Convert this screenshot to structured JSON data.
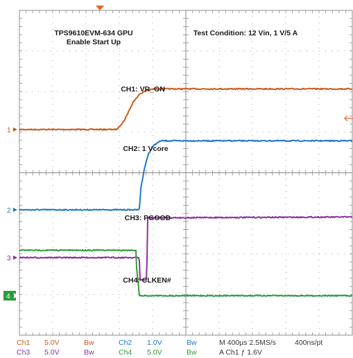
{
  "chart_data": {
    "type": "line",
    "x_unit": "µs",
    "x_range": [
      0,
      4000
    ],
    "y_unit": "div",
    "y_range": [
      -4,
      4
    ],
    "grid": true,
    "annotations": {
      "title_line1": "TPS9610EVM-634  GPU",
      "title_line2": "Enable Start Up",
      "test_condition": "Test Condition: 12 Vin, 1 V/5 A"
    },
    "series": [
      {
        "name": "CH1: VR_ON",
        "marker": "1",
        "color": "#c85a1e",
        "x": [
          0,
          1170,
          1260,
          1320,
          1380,
          1450,
          1530,
          1620,
          4000
        ],
        "values": [
          0.0,
          0.0,
          0.22,
          0.48,
          0.72,
          0.88,
          0.96,
          1.0,
          1.0
        ]
      },
      {
        "name": "CH2: 1 Vcore",
        "marker": "2",
        "color": "#1f77c4",
        "x": [
          0,
          1440,
          1460,
          1500,
          1550,
          1620,
          1700,
          4000
        ],
        "values": [
          0.0,
          0.0,
          0.55,
          1.0,
          1.38,
          1.6,
          1.7,
          1.7
        ]
      },
      {
        "name": "CH3: PGOOD",
        "marker": "3",
        "color": "#8b2fa0",
        "x": [
          0,
          1440,
          1450,
          1530,
          1540,
          4000
        ],
        "values": [
          0.0,
          0.0,
          -0.55,
          -0.55,
          0.98,
          1.0
        ]
      },
      {
        "name": "CH4: CLKEN#",
        "marker": "4",
        "color": "#2e9b3c",
        "x": [
          0,
          1400,
          1405,
          1430,
          1440,
          4000
        ],
        "values": [
          1.12,
          1.12,
          0.75,
          0.25,
          0.0,
          0.0
        ]
      }
    ],
    "status_bar": {
      "ch1_label": "Ch1",
      "ch1_scale": "5.0V",
      "ch1_bw": "Bw",
      "ch2_label": "Ch2",
      "ch2_scale": "1.0V",
      "ch2_bw": "Bw",
      "ch3_label": "Ch3",
      "ch3_scale": "5.0V",
      "ch3_bw": "Bw",
      "ch4_label": "Ch4",
      "ch4_scale": "5.0V",
      "ch4_bw": "Bw",
      "timebase": "M 400µs 2.5MS/s",
      "record": "400ns/pt",
      "trigger": "A  Ch1  ƒ  1.6V"
    },
    "colors": {
      "ch1": "#c85a1e",
      "ch2": "#1f77c4",
      "ch3": "#8b2fa0",
      "ch4": "#2e9b3c",
      "trigger_marker": "#e8632a",
      "grid": "#8c8c8c"
    }
  }
}
